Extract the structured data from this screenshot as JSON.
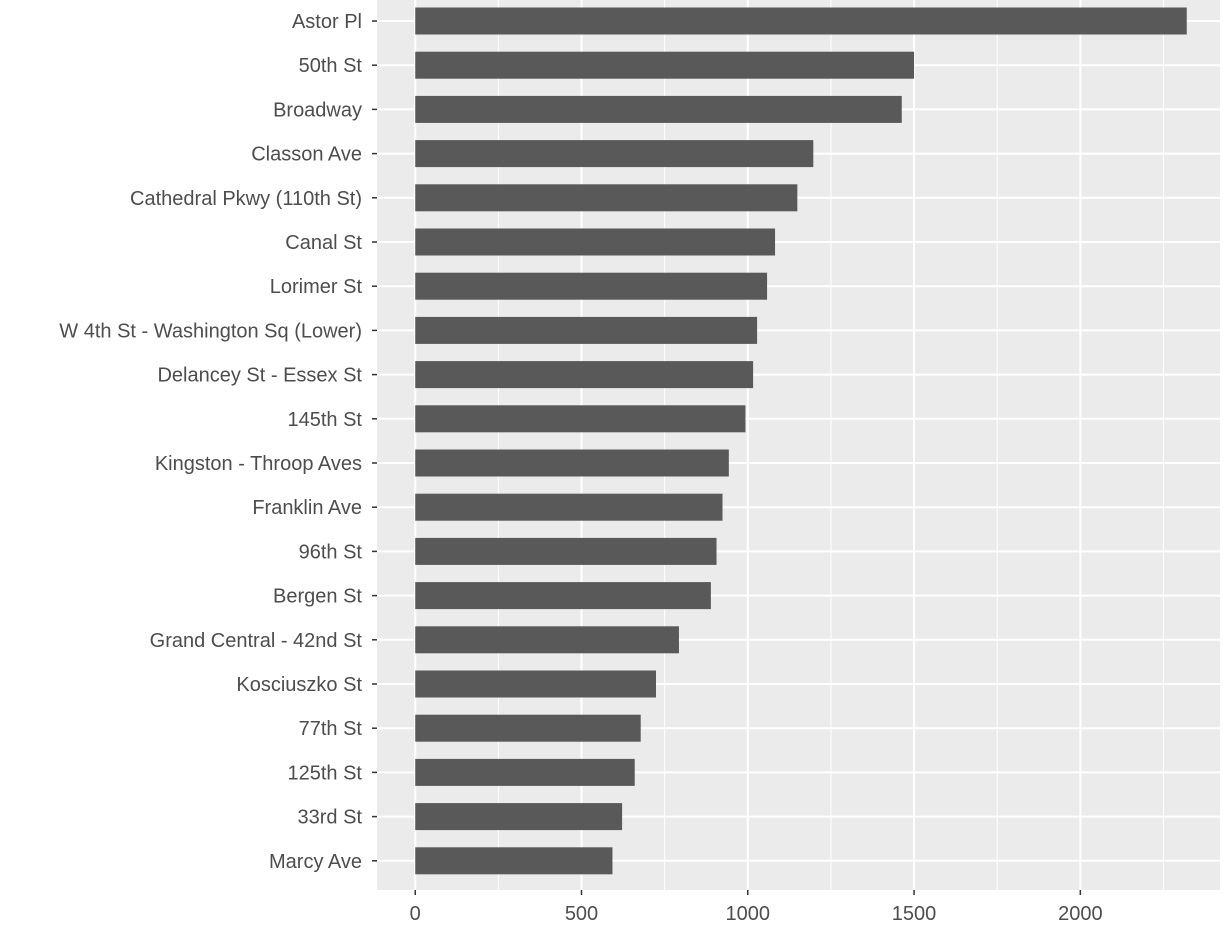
{
  "chart_data": {
    "type": "bar",
    "orientation": "horizontal",
    "title": "",
    "xlabel": "",
    "ylabel": "",
    "categories": [
      "Astor Pl",
      "50th St",
      "Broadway",
      "Classon Ave",
      "Cathedral Pkwy (110th St)",
      "Canal St",
      "Lorimer St",
      "W 4th St - Washington Sq (Lower)",
      "Delancey St - Essex St",
      "145th St",
      "Kingston - Throop Aves",
      "Franklin Ave",
      "96th St",
      "Bergen St",
      "Grand Central - 42nd St",
      "Kosciuszko St",
      "77th St",
      "125th St",
      "33rd St",
      "Marcy Ave"
    ],
    "values": [
      2320,
      1500,
      1463,
      1197,
      1149,
      1082,
      1058,
      1028,
      1016,
      993,
      943,
      924,
      906,
      889,
      793,
      724,
      678,
      660,
      622,
      593
    ],
    "xlim": [
      -115,
      2420
    ],
    "xticks": [
      0,
      500,
      1000,
      1500,
      2000
    ],
    "xtick_labels": [
      "0",
      "500",
      "1000",
      "1500",
      "2000"
    ],
    "x_minor_ticks": [
      250,
      750,
      1250,
      1750,
      2250
    ],
    "grid": true,
    "legend": "none",
    "colors": {
      "bar": "#595959",
      "panel_background": "#ebebeb",
      "grid": "#ffffff",
      "text": "#4d4d4d",
      "tick_mark": "#333333"
    }
  }
}
